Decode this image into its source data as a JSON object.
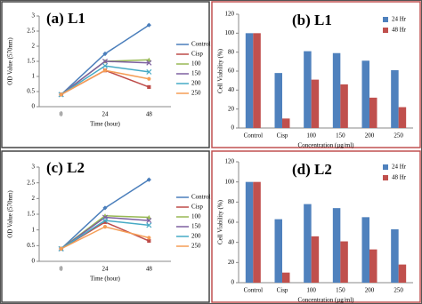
{
  "chart_data": [
    {
      "type": "line",
      "title": "(a) L1",
      "x_label": "Time (hour)",
      "y_label": "OD Value (570nm)",
      "categories": [
        "0",
        "24",
        "48"
      ],
      "ylim": [
        0,
        3
      ],
      "yticks": [
        0,
        0.5,
        1,
        1.5,
        2,
        2.5,
        3
      ],
      "series": [
        {
          "name": "Control",
          "color": "#4a7ebb",
          "marker": "diamond",
          "values": [
            0.4,
            1.75,
            2.7
          ]
        },
        {
          "name": "Cisp",
          "color": "#be4b48",
          "marker": "square",
          "values": [
            0.4,
            1.2,
            0.65
          ]
        },
        {
          "name": "100",
          "color": "#98b954",
          "marker": "triangle",
          "values": [
            0.4,
            1.5,
            1.55
          ]
        },
        {
          "name": "150",
          "color": "#7d60a0",
          "marker": "x",
          "values": [
            0.4,
            1.5,
            1.45
          ]
        },
        {
          "name": "200",
          "color": "#46aac5",
          "marker": "x",
          "values": [
            0.4,
            1.35,
            1.15
          ]
        },
        {
          "name": "250",
          "color": "#f59d56",
          "marker": "circle",
          "values": [
            0.4,
            1.2,
            0.92
          ]
        }
      ]
    },
    {
      "type": "bar",
      "title": "(b) L1",
      "x_label": "Concentration (µg/ml)",
      "y_label": "Cell Viability (%)",
      "categories": [
        "Control",
        "Cisp",
        "100",
        "150",
        "200",
        "250"
      ],
      "ylim": [
        0,
        120
      ],
      "yticks": [
        0,
        20,
        40,
        60,
        80,
        100,
        120
      ],
      "series": [
        {
          "name": "24 Hr",
          "color": "#4f81bd",
          "values": [
            100,
            58,
            81,
            79,
            71,
            61
          ]
        },
        {
          "name": "48 Hr",
          "color": "#c0504d",
          "values": [
            100,
            10,
            51,
            46,
            32,
            22
          ]
        }
      ]
    },
    {
      "type": "line",
      "title": "(c) L2",
      "x_label": "Time (hour)",
      "y_label": "OD Value (570nm)",
      "categories": [
        "0",
        "24",
        "48"
      ],
      "ylim": [
        0,
        3
      ],
      "yticks": [
        0,
        0.5,
        1,
        1.5,
        2,
        2.5,
        3
      ],
      "series": [
        {
          "name": "Control",
          "color": "#4a7ebb",
          "marker": "diamond",
          "values": [
            0.4,
            1.7,
            2.6
          ]
        },
        {
          "name": "Cisp",
          "color": "#be4b48",
          "marker": "square",
          "values": [
            0.4,
            1.25,
            0.65
          ]
        },
        {
          "name": "100",
          "color": "#98b954",
          "marker": "triangle",
          "values": [
            0.4,
            1.45,
            1.4
          ]
        },
        {
          "name": "150",
          "color": "#7d60a0",
          "marker": "x",
          "values": [
            0.4,
            1.4,
            1.3
          ]
        },
        {
          "name": "200",
          "color": "#46aac5",
          "marker": "x",
          "values": [
            0.4,
            1.3,
            1.15
          ]
        },
        {
          "name": "250",
          "color": "#f59d56",
          "marker": "circle",
          "values": [
            0.4,
            1.1,
            0.75
          ]
        }
      ]
    },
    {
      "type": "bar",
      "title": "(d) L2",
      "x_label": "Concentration (µg/ml)",
      "y_label": "Cell Viability (%)",
      "categories": [
        "Control",
        "Cisp",
        "100",
        "150",
        "200",
        "250"
      ],
      "ylim": [
        0,
        120
      ],
      "yticks": [
        0,
        20,
        40,
        60,
        80,
        100,
        120
      ],
      "series": [
        {
          "name": "24 Hr",
          "color": "#4f81bd",
          "values": [
            100,
            63,
            78,
            74,
            65,
            53
          ]
        },
        {
          "name": "48 Hr",
          "color": "#c0504d",
          "values": [
            100,
            10,
            46,
            41,
            33,
            18
          ]
        }
      ]
    }
  ]
}
